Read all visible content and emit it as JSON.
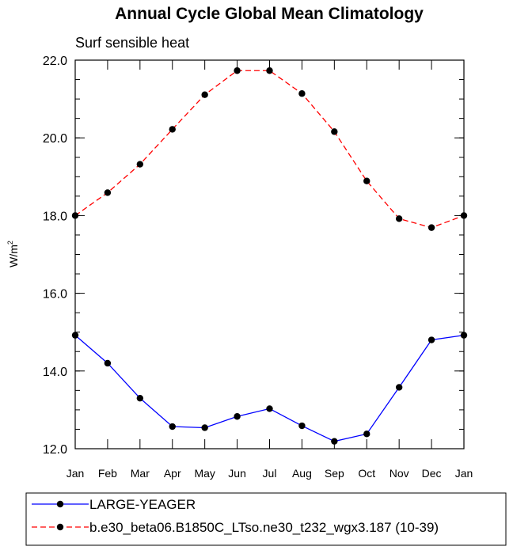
{
  "chart_data": {
    "type": "line",
    "title": "Annual Cycle Global Mean Climatology",
    "subtitle": "Surf sensible heat",
    "xlabel": "",
    "ylabel_base": "W/m",
    "ylabel_sup": "2",
    "categories": [
      "Jan",
      "Feb",
      "Mar",
      "Apr",
      "May",
      "Jun",
      "Jul",
      "Aug",
      "Sep",
      "Oct",
      "Nov",
      "Dec",
      "Jan"
    ],
    "ylim": [
      12.0,
      22.0
    ],
    "yticks": [
      12.0,
      14.0,
      16.0,
      18.0,
      20.0,
      22.0
    ],
    "ytick_labels": [
      "12.0",
      "14.0",
      "16.0",
      "18.0",
      "20.0",
      "22.0"
    ],
    "yminor_step": 0.5,
    "grid": false,
    "legend_position": "bottom",
    "series": [
      {
        "name": "LARGE-YEAGER",
        "color": "#0000ff",
        "line_style": "solid",
        "marker": "filled-circle",
        "values": [
          14.92,
          14.2,
          13.3,
          12.57,
          12.54,
          12.83,
          13.03,
          12.59,
          12.19,
          12.38,
          13.58,
          14.8,
          14.92
        ]
      },
      {
        "name": "b.e30_beta06.B1850C_LTso.ne30_t232_wgx3.187 (10-39)",
        "color": "#ff0000",
        "line_style": "dashed",
        "marker": "filled-circle",
        "values": [
          18.0,
          18.59,
          19.32,
          20.22,
          21.11,
          21.73,
          21.73,
          21.14,
          20.16,
          18.89,
          17.92,
          17.69,
          18.0
        ]
      }
    ]
  }
}
